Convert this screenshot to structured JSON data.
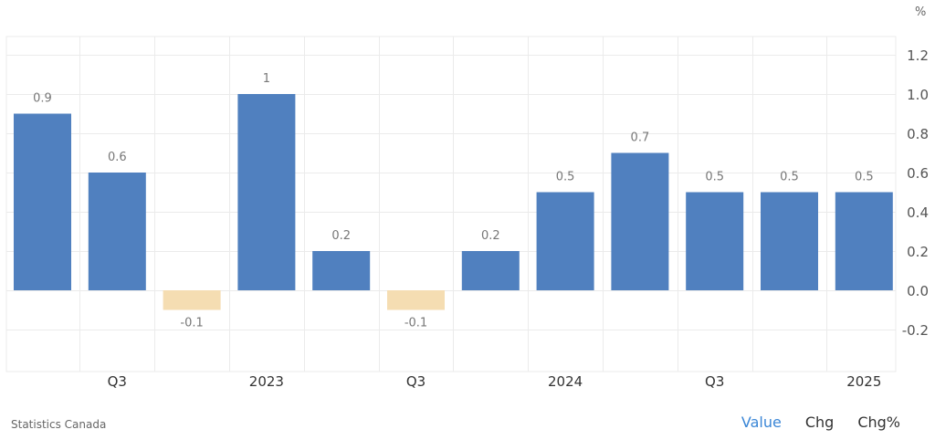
{
  "unit": "%",
  "source": "Statistics Canada",
  "toggles": [
    {
      "label": "Value",
      "active": true
    },
    {
      "label": "Chg",
      "active": false
    },
    {
      "label": "Chg%",
      "active": false
    }
  ],
  "colors": {
    "positive": "#5080bf",
    "negative": "#f5ddb2",
    "grid": "#ebebeb",
    "axis_text": "#555555",
    "label_text": "#777777"
  },
  "chart_data": {
    "type": "bar",
    "values": [
      0.9,
      0.6,
      -0.1,
      1.0,
      0.2,
      -0.1,
      0.2,
      0.5,
      0.7,
      0.5,
      0.5,
      0.5
    ],
    "data_labels": [
      "0.9",
      "0.6",
      "-0.1",
      "1",
      "0.2",
      "-0.1",
      "0.2",
      "0.5",
      "0.7",
      "0.5",
      "0.5",
      "0.5"
    ],
    "x_tick_labels": [
      {
        "bar_index": 1,
        "label": "Q3"
      },
      {
        "bar_index": 3,
        "label": "2023"
      },
      {
        "bar_index": 5,
        "label": "Q3"
      },
      {
        "bar_index": 7,
        "label": "2024"
      },
      {
        "bar_index": 9,
        "label": "Q3"
      },
      {
        "bar_index": 11,
        "label": "2025"
      }
    ],
    "y_ticks": [
      1.2,
      1.0,
      0.8,
      0.6,
      0.4,
      0.2,
      0.0,
      -0.2
    ],
    "y_tick_labels": [
      "1.2",
      "1.0",
      "0.8",
      "0.6",
      "0.4",
      "0.2",
      "0.0",
      "-0.2"
    ],
    "ylim": [
      -0.2,
      1.2
    ],
    "y_axis_position": "right",
    "grid": true,
    "legend": "none"
  }
}
